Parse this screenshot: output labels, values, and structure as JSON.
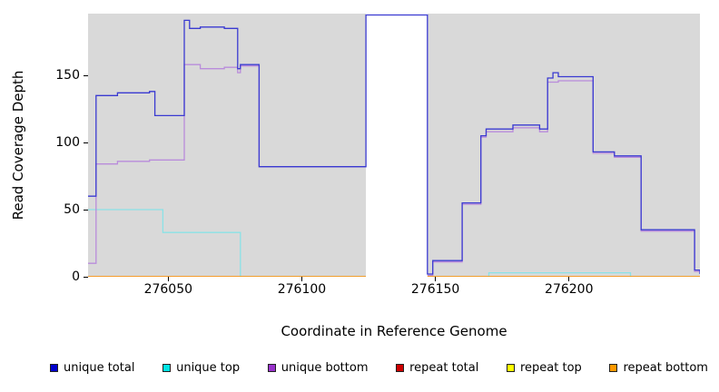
{
  "chart_data": {
    "type": "line",
    "title": "",
    "xlabel": "Coordinate in Reference Genome",
    "ylabel": "Read Coverage Depth",
    "xlim": [
      276020,
      276249
    ],
    "ylim": [
      0,
      196
    ],
    "x_ticks": [
      276050,
      276100,
      276150,
      276200
    ],
    "y_ticks": [
      0,
      50,
      100,
      150
    ],
    "grid": false,
    "plot_background": "#d9d9d9",
    "legend_position": "bottom",
    "masked_region": {
      "x_start": 276124,
      "x_end": 276147,
      "note": "white band where no data is shown; top line of unique total runs across its top"
    },
    "series": [
      {
        "name": "unique total",
        "legend_color": "#0000cd",
        "line_color": "#3a3ad1",
        "segments": [
          [
            [
              276020,
              60
            ],
            [
              276023,
              60
            ],
            [
              276023,
              135
            ],
            [
              276031,
              135
            ],
            [
              276031,
              137
            ],
            [
              276043,
              137
            ],
            [
              276043,
              138
            ],
            [
              276045,
              138
            ],
            [
              276045,
              120
            ],
            [
              276056,
              120
            ],
            [
              276056,
              191
            ],
            [
              276058,
              191
            ],
            [
              276058,
              185
            ],
            [
              276062,
              185
            ],
            [
              276062,
              186
            ],
            [
              276071,
              186
            ],
            [
              276071,
              185
            ],
            [
              276076,
              185
            ],
            [
              276076,
              155
            ],
            [
              276077,
              155
            ],
            [
              276077,
              158
            ],
            [
              276084,
              158
            ],
            [
              276084,
              82
            ],
            [
              276124,
              82
            ],
            [
              276124,
              195
            ],
            [
              276147,
              195
            ],
            [
              276147,
              2
            ],
            [
              276149,
              2
            ],
            [
              276149,
              12
            ],
            [
              276160,
              12
            ],
            [
              276160,
              55
            ],
            [
              276167,
              55
            ],
            [
              276167,
              105
            ],
            [
              276169,
              105
            ],
            [
              276169,
              110
            ],
            [
              276179,
              110
            ],
            [
              276179,
              113
            ],
            [
              276189,
              113
            ],
            [
              276189,
              110
            ],
            [
              276192,
              110
            ],
            [
              276192,
              148
            ],
            [
              276194,
              148
            ],
            [
              276194,
              152
            ],
            [
              276196,
              152
            ],
            [
              276196,
              149
            ],
            [
              276209,
              149
            ],
            [
              276209,
              93
            ],
            [
              276217,
              93
            ],
            [
              276217,
              90
            ],
            [
              276227,
              90
            ],
            [
              276227,
              35
            ],
            [
              276247,
              35
            ],
            [
              276247,
              5
            ],
            [
              276249,
              5
            ],
            [
              276249,
              2
            ]
          ]
        ]
      },
      {
        "name": "unique top",
        "legend_color": "#00e5e5",
        "line_color": "#8ae2e6",
        "segments": [
          [
            [
              276020,
              50
            ],
            [
              276048,
              50
            ],
            [
              276048,
              33
            ],
            [
              276077,
              33
            ],
            [
              276077,
              0
            ],
            [
              276124,
              0
            ]
          ],
          [
            [
              276147,
              0
            ],
            [
              276170,
              0
            ],
            [
              276170,
              3
            ],
            [
              276223,
              3
            ],
            [
              276223,
              0
            ],
            [
              276249,
              0
            ]
          ]
        ]
      },
      {
        "name": "unique bottom",
        "legend_color": "#9932cc",
        "line_color": "#b98cdb",
        "segments": [
          [
            [
              276020,
              10
            ],
            [
              276023,
              10
            ],
            [
              276023,
              84
            ],
            [
              276031,
              84
            ],
            [
              276031,
              86
            ],
            [
              276043,
              86
            ],
            [
              276043,
              87
            ],
            [
              276056,
              87
            ],
            [
              276056,
              158
            ],
            [
              276062,
              158
            ],
            [
              276062,
              155
            ],
            [
              276071,
              155
            ],
            [
              276071,
              156
            ],
            [
              276076,
              156
            ],
            [
              276076,
              152
            ],
            [
              276077,
              152
            ],
            [
              276077,
              157
            ],
            [
              276084,
              157
            ],
            [
              276084,
              82
            ],
            [
              276124,
              82
            ]
          ],
          [
            [
              276147,
              1
            ],
            [
              276149,
              1
            ],
            [
              276149,
              11
            ],
            [
              276160,
              11
            ],
            [
              276160,
              54
            ],
            [
              276167,
              54
            ],
            [
              276167,
              104
            ],
            [
              276169,
              104
            ],
            [
              276169,
              108
            ],
            [
              276179,
              108
            ],
            [
              276179,
              111
            ],
            [
              276189,
              111
            ],
            [
              276189,
              108
            ],
            [
              276192,
              108
            ],
            [
              276192,
              145
            ],
            [
              276196,
              145
            ],
            [
              276196,
              146
            ],
            [
              276209,
              146
            ],
            [
              276209,
              92
            ],
            [
              276217,
              92
            ],
            [
              276217,
              89
            ],
            [
              276227,
              89
            ],
            [
              276227,
              34
            ],
            [
              276247,
              34
            ],
            [
              276247,
              4
            ],
            [
              276249,
              4
            ]
          ]
        ]
      },
      {
        "name": "repeat total",
        "legend_color": "#cd0000",
        "line_color": "#cd0000",
        "segments": [
          [
            [
              276020,
              0
            ],
            [
              276124,
              0
            ]
          ],
          [
            [
              276147,
              0
            ],
            [
              276249,
              0
            ]
          ]
        ]
      },
      {
        "name": "repeat top",
        "legend_color": "#ffff00",
        "line_color": "#ffff00",
        "segments": [
          [
            [
              276020,
              0
            ],
            [
              276124,
              0
            ]
          ],
          [
            [
              276147,
              0
            ],
            [
              276249,
              0
            ]
          ]
        ]
      },
      {
        "name": "repeat bottom",
        "legend_color": "#ff9900",
        "line_color": "#ff8c00",
        "segments": [
          [
            [
              276020,
              0
            ],
            [
              276124,
              0
            ]
          ],
          [
            [
              276147,
              0
            ],
            [
              276249,
              0
            ]
          ]
        ]
      }
    ]
  }
}
